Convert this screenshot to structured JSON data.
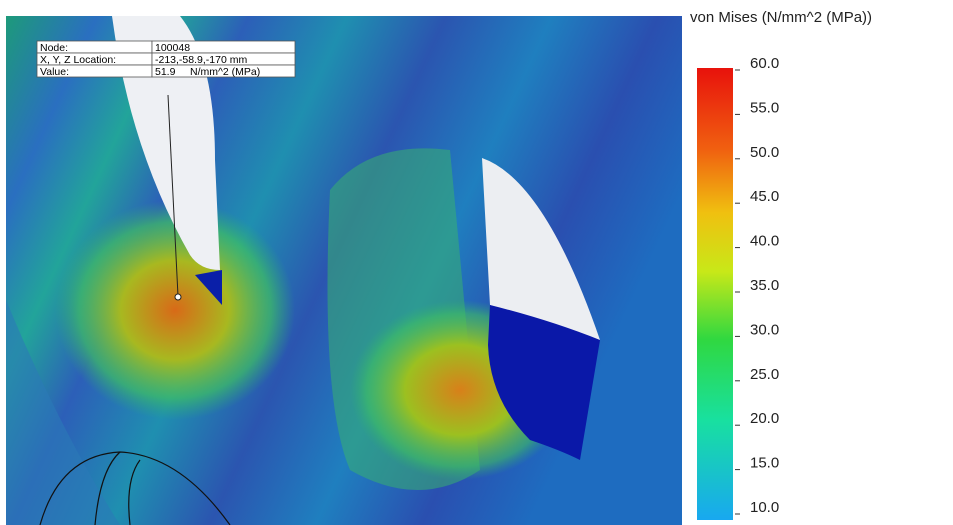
{
  "legend": {
    "title": "von Mises (N/mm^2 (MPa))",
    "ticks": [
      {
        "value": 60,
        "label": "60.0"
      },
      {
        "value": 55,
        "label": "55.0"
      },
      {
        "value": 50,
        "label": "50.0"
      },
      {
        "value": 45,
        "label": "45.0"
      },
      {
        "value": 40,
        "label": "40.0"
      },
      {
        "value": 35,
        "label": "35.0"
      },
      {
        "value": 30,
        "label": "30.0"
      },
      {
        "value": 25,
        "label": "25.0"
      },
      {
        "value": 20,
        "label": "20.0"
      },
      {
        "value": 15,
        "label": "15.0"
      },
      {
        "value": 10,
        "label": "10.0"
      }
    ]
  },
  "probe": {
    "rows": [
      [
        "Node:",
        "100048"
      ],
      [
        "X, Y, Z Location:",
        "-213,-58.9,-170 mm"
      ],
      [
        "Value:",
        "51.9",
        "N/mm^2 (MPa)"
      ]
    ]
  }
}
